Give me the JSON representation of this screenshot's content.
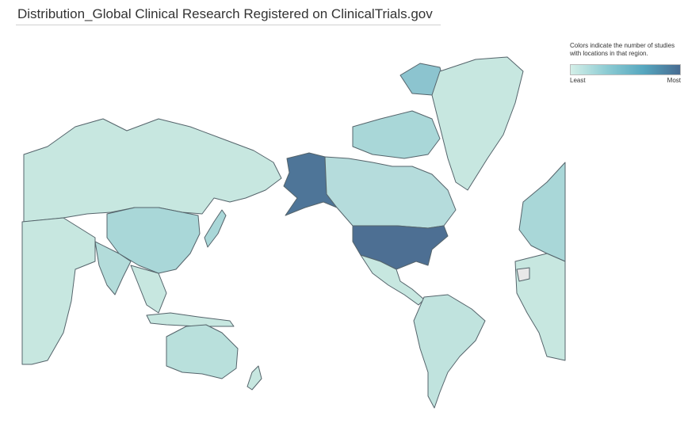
{
  "header": {
    "title": "Distribution_Global Clinical Research Registered on ClinicalTrials.gov"
  },
  "legend": {
    "description": [
      "Colors indicate the number of studies",
      "with locations in that region."
    ],
    "min_label": "Least",
    "max_label": "Most"
  }
}
